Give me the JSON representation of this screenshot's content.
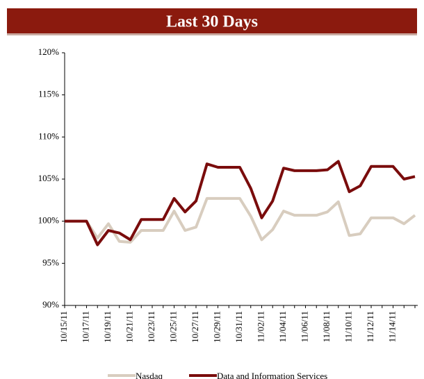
{
  "chart_data": {
    "type": "line",
    "title": "Last 30 Days",
    "categories": [
      "10/15/11",
      null,
      "10/17/11",
      null,
      "10/19/11",
      null,
      "10/21/11",
      null,
      "10/23/11",
      null,
      "10/25/11",
      null,
      "10/27/11",
      null,
      "10/29/11",
      null,
      "10/31/11",
      null,
      "11/02/11",
      null,
      "11/04/11",
      null,
      "11/06/11",
      null,
      "11/08/11",
      null,
      "11/10/11",
      null,
      "11/12/11",
      null,
      "11/14/11",
      null,
      null
    ],
    "series": [
      {
        "name": "Nasdaq",
        "color": "#d8cdbf",
        "values": [
          100,
          100,
          100,
          98.0,
          99.7,
          97.6,
          97.5,
          98.9,
          98.9,
          98.9,
          101.2,
          98.9,
          99.3,
          102.7,
          102.7,
          102.7,
          102.7,
          100.6,
          97.8,
          99.0,
          101.2,
          100.7,
          100.7,
          100.7,
          101.1,
          102.3,
          98.3,
          98.5,
          100.4,
          100.4,
          100.4,
          99.7,
          100.7
        ]
      },
      {
        "name": "Data and Information Services",
        "color": "#7a0c0c",
        "values": [
          100,
          100,
          100,
          97.2,
          98.9,
          98.6,
          97.8,
          100.2,
          100.2,
          100.2,
          102.7,
          101.1,
          102.4,
          106.8,
          106.4,
          106.4,
          106.4,
          103.9,
          100.4,
          102.4,
          106.3,
          106.0,
          106.0,
          106.0,
          106.1,
          107.1,
          103.5,
          104.2,
          106.5,
          106.5,
          106.5,
          105.0,
          105.3
        ]
      }
    ],
    "ylim": [
      90,
      120
    ],
    "yticks": [
      {
        "value": 90,
        "label": "90%"
      },
      {
        "value": 95,
        "label": "95%"
      },
      {
        "value": 100,
        "label": "100%"
      },
      {
        "value": 105,
        "label": "105%"
      },
      {
        "value": 110,
        "label": "110%"
      },
      {
        "value": 115,
        "label": "115%"
      },
      {
        "value": 120,
        "label": "120%"
      }
    ],
    "grid": false
  }
}
